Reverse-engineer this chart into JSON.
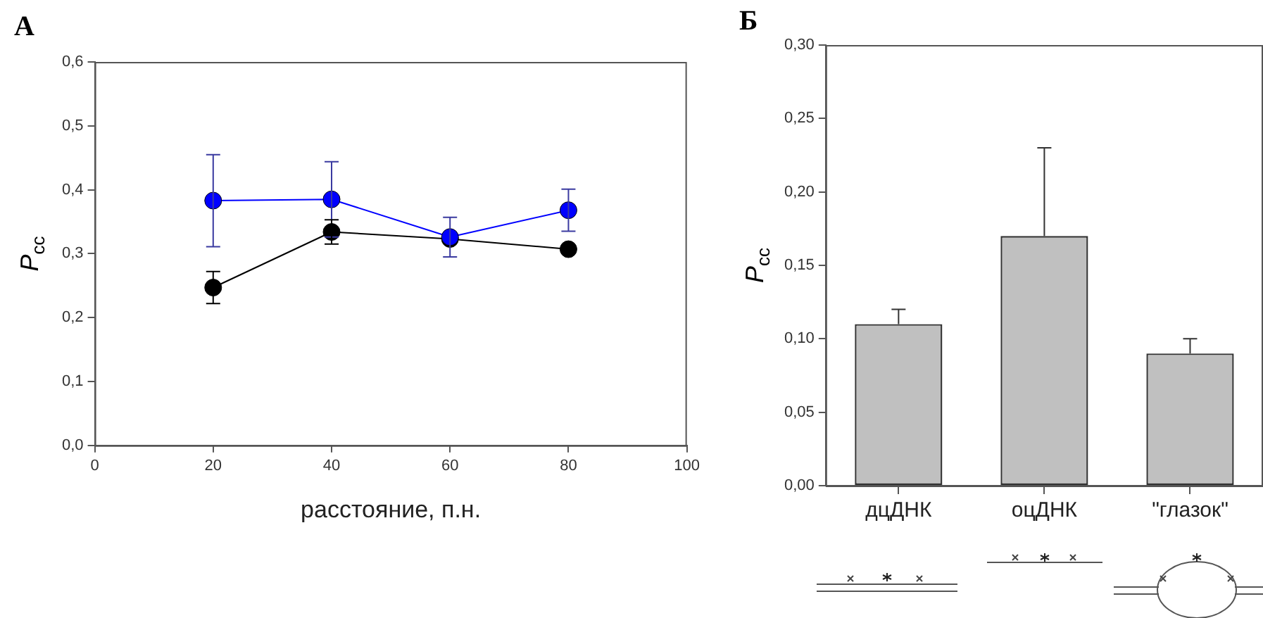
{
  "chart_data": [
    {
      "type": "line",
      "title": "А",
      "xlabel": "расстояние, п.н.",
      "ylabel": "P$_{cc}$",
      "x": [
        20,
        40,
        60,
        80
      ],
      "series": [
        {
          "color": "#0000ff",
          "values": [
            0.383,
            0.385,
            0.326,
            0.368
          ],
          "errors": [
            0.072,
            0.059,
            0.031,
            0.033
          ]
        },
        {
          "color": "#000000",
          "values": [
            0.247,
            0.334,
            0.323,
            0.307
          ],
          "errors": [
            0.025,
            0.019,
            null,
            null
          ]
        }
      ],
      "xlim": [
        0,
        100
      ],
      "xticks": [
        0,
        20,
        40,
        60,
        80,
        100
      ],
      "ylim": [
        0,
        0.6
      ],
      "yticks": [
        {
          "value": 0,
          "label": "0,0"
        },
        {
          "value": 0.1,
          "label": "0,1"
        },
        {
          "value": 0.2,
          "label": "0,2"
        },
        {
          "value": 0.3,
          "label": "0,3"
        },
        {
          "value": 0.4,
          "label": "0,4"
        },
        {
          "value": 0.5,
          "label": "0,5"
        },
        {
          "value": 0.6,
          "label": "0,6"
        }
      ],
      "marker": "circle",
      "grid": false,
      "legend": false
    },
    {
      "type": "bar",
      "title": "Б",
      "ylabel": "P$_{cc}$",
      "categories": [
        "дцДНК",
        "оцДНК",
        "\"глазок\""
      ],
      "values": [
        0.11,
        0.17,
        0.09
      ],
      "color": "#c0c0c0",
      "errors": [
        [
          0.11,
          0.12
        ],
        [
          0.17,
          0.23
        ],
        [
          0.09,
          0.1
        ]
      ],
      "ylim": [
        0,
        0.3
      ],
      "yticks": [
        {
          "value": 0,
          "label": "0,00"
        },
        {
          "value": 0.05,
          "label": "0,05"
        },
        {
          "value": 0.1,
          "label": "0,10"
        },
        {
          "value": 0.15,
          "label": "0,15"
        },
        {
          "value": 0.2,
          "label": "0,20"
        },
        {
          "value": 0.25,
          "label": "0,25"
        },
        {
          "value": 0.3,
          "label": "0,30"
        }
      ],
      "grid": false,
      "legend": false
    }
  ]
}
